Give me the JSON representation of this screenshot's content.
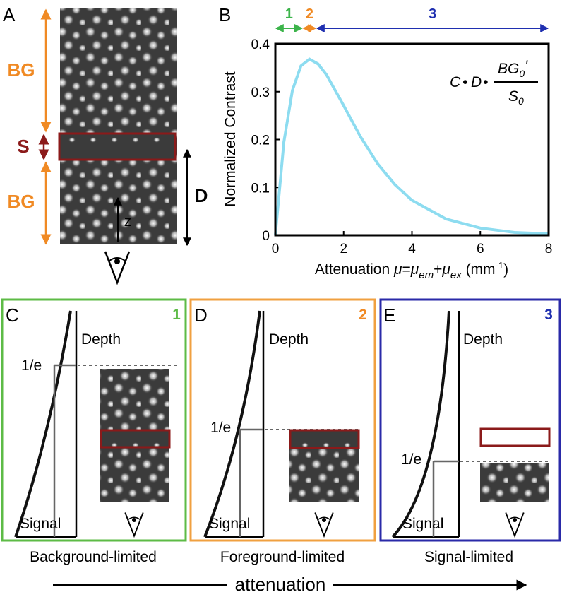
{
  "panel_a": {
    "letter": "A",
    "bg_top": "BG",
    "s": "S",
    "bg_bottom": "BG",
    "d": "D",
    "z": "z"
  },
  "chart_data": {
    "type": "line",
    "panel_letter": "B",
    "y_label": "Normalized Contrast",
    "x_label_parts": [
      "Attenuation ",
      "μ",
      "=",
      "μ",
      "em",
      "+",
      "μ",
      "ex",
      " (mm",
      "-1",
      ")"
    ],
    "formula_parts": [
      "C",
      "•",
      "D",
      "•",
      "BG",
      "0",
      "'",
      "S",
      "0"
    ],
    "x": [
      0,
      0.25,
      0.5,
      0.75,
      1,
      1.25,
      1.5,
      2,
      2.5,
      3,
      3.5,
      4,
      5,
      6,
      7,
      8
    ],
    "values": [
      0,
      0.195,
      0.303,
      0.354,
      0.368,
      0.358,
      0.335,
      0.271,
      0.205,
      0.149,
      0.106,
      0.073,
      0.034,
      0.015,
      0.006,
      0.003
    ],
    "color": "#8ddcf0",
    "xlim": [
      0,
      8
    ],
    "ylim": [
      0,
      0.4
    ],
    "xticks": [
      0,
      2,
      4,
      6,
      8
    ],
    "yticks": [
      0,
      0.1,
      0.2,
      0.3,
      0.4
    ],
    "regions": [
      {
        "label": "1",
        "color": "#3cb44b",
        "range": [
          0,
          0.8
        ]
      },
      {
        "label": "2",
        "color": "#f08a24",
        "range": [
          0.8,
          1.2
        ]
      },
      {
        "label": "3",
        "color": "#1f2fb0",
        "range": [
          1.2,
          8
        ]
      }
    ]
  },
  "panels": [
    {
      "letter": "C",
      "number": "1",
      "depth_label": "Depth",
      "threshold_label": "1/e",
      "signal_label": "Signal",
      "caption": "Background-limited"
    },
    {
      "letter": "D",
      "number": "2",
      "depth_label": "Depth",
      "threshold_label": "1/e",
      "signal_label": "Signal",
      "caption": "Foreground-limited"
    },
    {
      "letter": "E",
      "number": "3",
      "depth_label": "Depth",
      "threshold_label": "1/e",
      "signal_label": "Signal",
      "caption": "Signal-limited"
    }
  ],
  "footer": {
    "label": "attenuation"
  }
}
